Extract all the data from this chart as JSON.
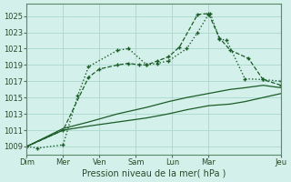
{
  "xlabel": "Pression niveau de la mer( hPa )",
  "bg_color": "#d4f0ea",
  "grid_color": "#a8d8cc",
  "line_color": "#1a5c28",
  "xlim": [
    0,
    7
  ],
  "ylim": [
    1008.0,
    1026.5
  ],
  "yticks": [
    1009,
    1011,
    1013,
    1015,
    1017,
    1019,
    1021,
    1023,
    1025
  ],
  "xtick_labels": [
    "Dim",
    "Mer",
    "Ven",
    "Sam",
    "Lun",
    "Mar",
    "Jeu"
  ],
  "xtick_positions": [
    0,
    1,
    2,
    3,
    4,
    5,
    7
  ],
  "series1_dotted": {
    "x": [
      0.0,
      0.3,
      1.0,
      1.4,
      1.7,
      2.5,
      2.8,
      3.3,
      3.6,
      3.9,
      4.4,
      4.7,
      5.0,
      5.05,
      5.3,
      5.5,
      6.0,
      6.5,
      7.0
    ],
    "y": [
      1009.0,
      1008.8,
      1009.2,
      1015.2,
      1018.8,
      1020.8,
      1021.0,
      1019.0,
      1019.2,
      1019.5,
      1021.0,
      1023.0,
      1025.2,
      1025.3,
      1022.2,
      1022.0,
      1017.3,
      1017.2,
      1017.0
    ]
  },
  "series2_dashed": {
    "x": [
      0.0,
      1.0,
      1.7,
      2.0,
      2.5,
      2.8,
      3.1,
      3.3,
      3.6,
      3.9,
      4.2,
      4.7,
      5.0,
      5.3,
      5.6,
      6.1,
      6.5,
      7.0
    ],
    "y": [
      1009.0,
      1011.0,
      1017.5,
      1018.5,
      1019.0,
      1019.2,
      1019.0,
      1019.0,
      1019.5,
      1020.0,
      1021.2,
      1025.2,
      1025.3,
      1022.3,
      1020.8,
      1019.8,
      1017.2,
      1016.5
    ]
  },
  "series3_solid": {
    "x": [
      0.0,
      1.0,
      1.7,
      2.5,
      3.3,
      3.9,
      4.4,
      5.0,
      5.6,
      6.0,
      6.5,
      7.0
    ],
    "y": [
      1009.0,
      1011.2,
      1012.0,
      1013.0,
      1013.8,
      1014.5,
      1015.0,
      1015.5,
      1016.0,
      1016.2,
      1016.5,
      1016.2
    ]
  },
  "series4_solid": {
    "x": [
      0.0,
      1.0,
      1.7,
      2.5,
      3.3,
      3.9,
      4.4,
      5.0,
      5.6,
      6.0,
      6.5,
      7.0
    ],
    "y": [
      1009.0,
      1011.0,
      1011.5,
      1012.0,
      1012.5,
      1013.0,
      1013.5,
      1014.0,
      1014.2,
      1014.5,
      1015.0,
      1015.5
    ]
  }
}
